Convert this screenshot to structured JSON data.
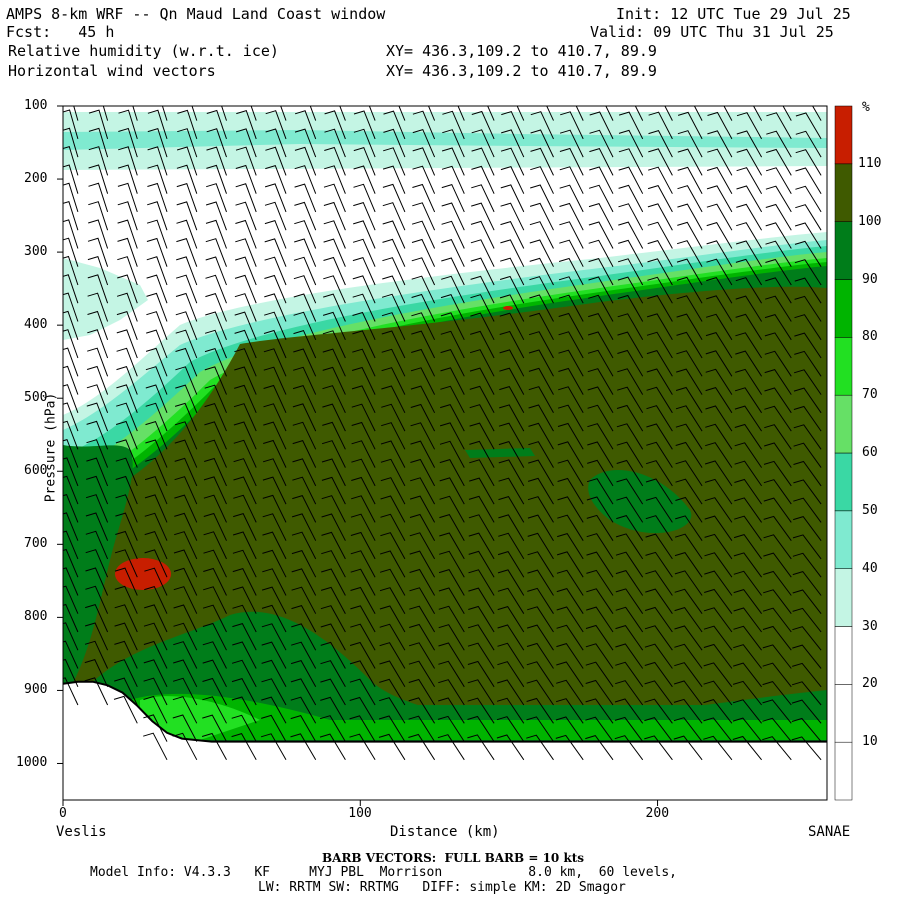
{
  "header": {
    "title": "AMPS 8-km WRF -- Qn Maud Land Coast window",
    "init": "Init: 12 UTC Tue 29 Jul 25",
    "fcst": "Fcst:   45 h",
    "valid": "Valid: 09 UTC Thu 31 Jul 25",
    "field1": "Relative humidity (w.r.t. ice)",
    "field2": "Horizontal wind vectors",
    "xy1": "XY= 436.3,109.2 to 410.7, 89.9",
    "xy2": "XY= 436.3,109.2 to 410.7, 89.9"
  },
  "footer": {
    "barb_note": "BARB VECTORS:  FULL BARB = 10 kts",
    "model_line": "Model Info: V4.3.3   KF     MYJ PBL  Morrison           8.0 km,  60 levels,",
    "physics_line": "LW: RRTM SW: RRTMG   DIFF: simple KM: 2D Smagor"
  },
  "chart_data": {
    "type": "heatmap",
    "title": "Relative humidity (w.r.t. ice)",
    "xlabel": "Distance (km)",
    "ylabel": "Pressure (hPa)",
    "x_ticks": [
      "0",
      "100",
      "200"
    ],
    "y_ticks": [
      "100",
      "200",
      "300",
      "400",
      "500",
      "600",
      "700",
      "800",
      "900",
      "1000"
    ],
    "xlim": [
      0,
      257
    ],
    "ylim": [
      1050,
      100
    ],
    "x_endpoints": {
      "left": "Veslis",
      "right": "SANAE"
    },
    "colorbar": {
      "unit": "%",
      "levels": [
        10,
        20,
        30,
        40,
        50,
        60,
        70,
        80,
        90,
        100,
        110
      ],
      "colors": [
        "#ffffff",
        "#ffffff",
        "#ffffff",
        "#c4f5e4",
        "#7fead0",
        "#3ad8a4",
        "#66e066",
        "#22e022",
        "#00b400",
        "#007d1a",
        "#3f5a00",
        "#c81e00"
      ]
    },
    "surface_pressure_profile": {
      "x": [
        0,
        5,
        10,
        15,
        20,
        25,
        30,
        35,
        40,
        50,
        60,
        80,
        100,
        150,
        200,
        257
      ],
      "p": [
        891,
        888,
        888,
        893,
        903,
        921,
        942,
        958,
        966,
        970,
        970,
        970,
        970,
        970,
        970,
        970
      ]
    },
    "wind_barbs": "Horizontal wind vectors"
  }
}
